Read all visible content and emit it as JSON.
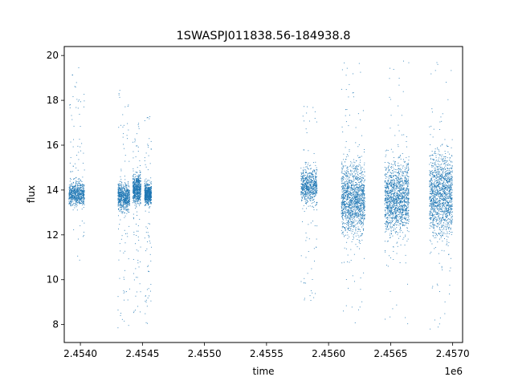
{
  "chart_data": {
    "type": "scatter",
    "title": "1SWASPJ011838.56-184938.8",
    "xlabel": "time",
    "ylabel": "flux",
    "x_offset_label": "1e6",
    "xlim": [
      2453870,
      2457080
    ],
    "ylim": [
      7.2,
      20.4
    ],
    "xticks": [
      2454000,
      2454500,
      2455000,
      2455500,
      2456000,
      2456500,
      2457000
    ],
    "xtick_labels": [
      "2.4540",
      "2.4545",
      "2.4550",
      "2.4555",
      "2.4560",
      "2.4565",
      "2.4570"
    ],
    "yticks": [
      8,
      10,
      12,
      14,
      16,
      18,
      20
    ],
    "ytick_labels": [
      "8",
      "10",
      "12",
      "14",
      "16",
      "18",
      "20"
    ],
    "grid": false,
    "marker_color": "#1f77b4",
    "series": [
      {
        "seasons": [
          {
            "x_range": [
              2453905,
              2454030
            ],
            "core_y": [
              12.7,
              15.0
            ],
            "spread_y": [
              10.5,
              19.7
            ]
          },
          {
            "x_range": [
              2454300,
              2454395
            ],
            "core_y": [
              12.5,
              14.9
            ],
            "spread_y": [
              7.8,
              18.5
            ]
          },
          {
            "x_range": [
              2454420,
              2454485
            ],
            "core_y": [
              12.8,
              15.3
            ],
            "spread_y": [
              7.9,
              17.0
            ]
          },
          {
            "x_range": [
              2454515,
              2454570
            ],
            "core_y": [
              12.9,
              14.8
            ],
            "spread_y": [
              8.0,
              17.3
            ]
          },
          {
            "x_range": [
              2455775,
              2455905
            ],
            "core_y": [
              12.6,
              15.8
            ],
            "spread_y": [
              9.0,
              17.8
            ]
          },
          {
            "x_range": [
              2456100,
              2456290
            ],
            "core_y": [
              10.2,
              17.0
            ],
            "spread_y": [
              7.8,
              19.8
            ]
          },
          {
            "x_range": [
              2456450,
              2456645
            ],
            "core_y": [
              10.4,
              16.9
            ],
            "spread_y": [
              7.7,
              19.8
            ]
          },
          {
            "x_range": [
              2456810,
              2456995
            ],
            "core_y": [
              10.0,
              17.5
            ],
            "spread_y": [
              7.7,
              19.8
            ]
          }
        ]
      }
    ]
  }
}
